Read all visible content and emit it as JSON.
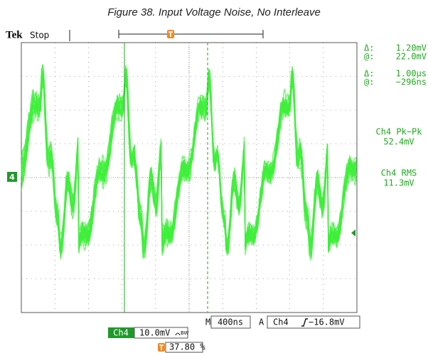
{
  "caption": "Figure 38. Input Voltage Noise, No Interleave",
  "header": {
    "brand": "Tek",
    "status": "Stop"
  },
  "cursor_readouts": [
    {
      "label": "Δ:",
      "value": "1.20mV"
    },
    {
      "label": "@:",
      "value": "22.0mV"
    },
    {
      "label": "Δ:",
      "value": "1.00µs"
    },
    {
      "label": "@:",
      "value": "−296ns"
    }
  ],
  "measurements": [
    {
      "label": "Ch4 Pk−Pk",
      "value": "52.4mV"
    },
    {
      "label": "Ch4 RMS",
      "value": "11.3mV"
    }
  ],
  "channel_marker": "4",
  "timebase": {
    "prefix": "M",
    "value": "400ns"
  },
  "trigger": {
    "prefix": "A",
    "source": "Ch4",
    "level": "−16.8mV"
  },
  "channel": {
    "name": "Ch4",
    "scale": "10.0mV",
    "bandwidth": "BW"
  },
  "trigger_position": "37.80 %"
}
